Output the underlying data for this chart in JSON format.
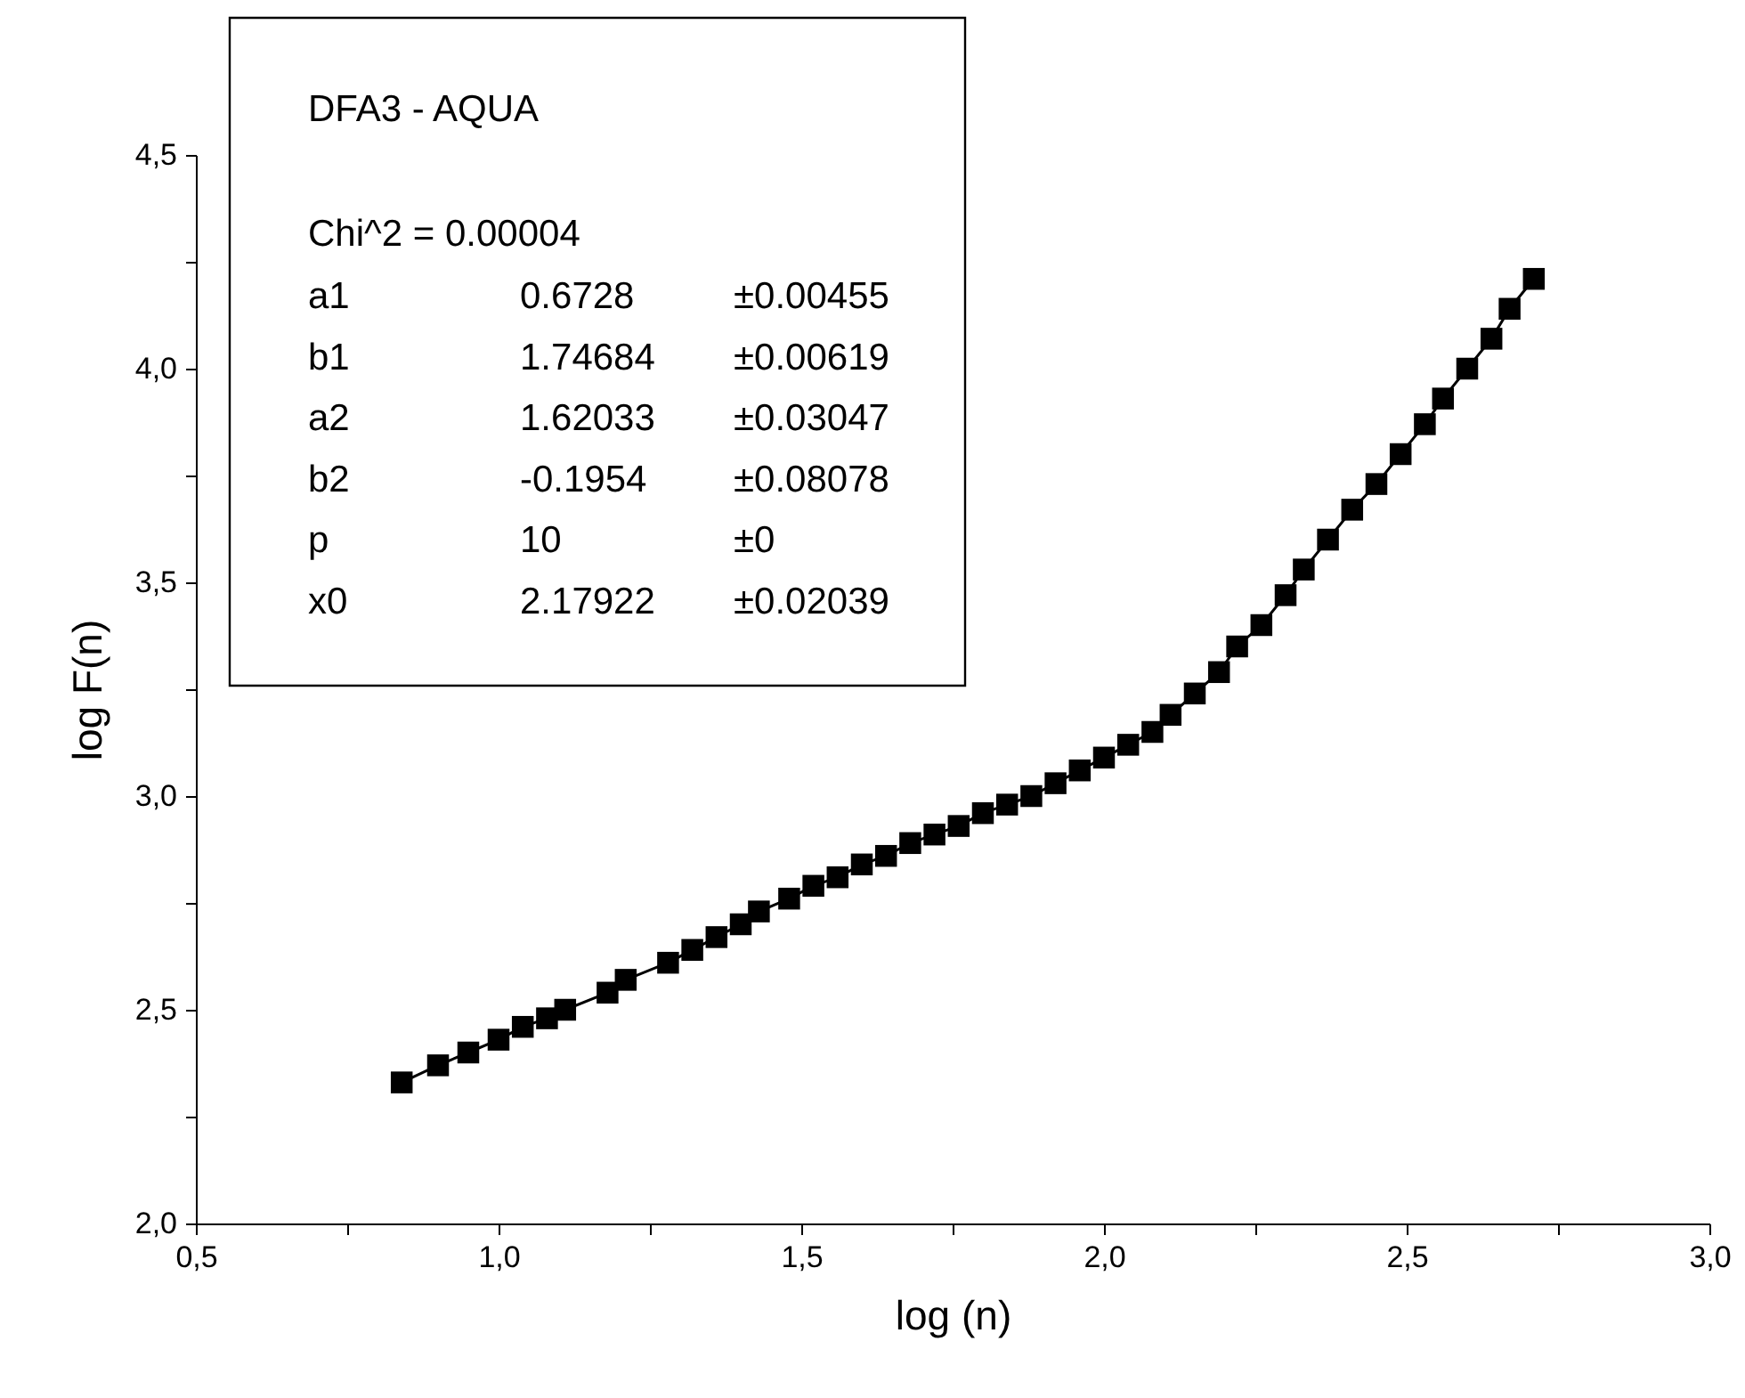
{
  "chart_data": {
    "type": "line",
    "xlabel": "log (n)",
    "ylabel": "log F(n)",
    "marker": "square",
    "line_style": "solid",
    "grid": false,
    "xlim": [
      0.5,
      3.0
    ],
    "ylim": [
      2.0,
      4.5
    ],
    "xticks": [
      {
        "value": 0.5,
        "label": "0,5"
      },
      {
        "value": 0.75,
        "label": null
      },
      {
        "value": 1.0,
        "label": "1,0"
      },
      {
        "value": 1.25,
        "label": null
      },
      {
        "value": 1.5,
        "label": "1,5"
      },
      {
        "value": 1.75,
        "label": null
      },
      {
        "value": 2.0,
        "label": "2,0"
      },
      {
        "value": 2.25,
        "label": null
      },
      {
        "value": 2.5,
        "label": "2,5"
      },
      {
        "value": 2.75,
        "label": null
      },
      {
        "value": 3.0,
        "label": "3,0"
      }
    ],
    "yticks": [
      {
        "value": 2.0,
        "label": "2,0"
      },
      {
        "value": 2.25,
        "label": null
      },
      {
        "value": 2.5,
        "label": "2,5"
      },
      {
        "value": 2.75,
        "label": null
      },
      {
        "value": 3.0,
        "label": "3,0"
      },
      {
        "value": 3.25,
        "label": null
      },
      {
        "value": 3.5,
        "label": "3,5"
      },
      {
        "value": 3.75,
        "label": null
      },
      {
        "value": 4.0,
        "label": "4,0"
      },
      {
        "value": 4.25,
        "label": null
      },
      {
        "value": 4.5,
        "label": "4,5"
      }
    ],
    "annotations": [
      "DFA3 - AQUA",
      "Chi^2 = 0.00004",
      "a1",
      "0.6728",
      "±0.00455",
      "b1",
      "1.74684",
      "±0.00619",
      "a2",
      "1.62033",
      "±0.03047",
      "b2",
      "-0.1954",
      "±0.08078",
      "p",
      "10",
      "±0",
      "x0",
      "2.17922",
      "±0.02039"
    ],
    "series": [
      {
        "color": "#000000",
        "x": [
          0.84,
          0.9,
          0.95,
          1.0,
          1.04,
          1.08,
          1.11,
          1.18,
          1.21,
          1.28,
          1.32,
          1.36,
          1.4,
          1.43,
          1.48,
          1.52,
          1.56,
          1.6,
          1.64,
          1.68,
          1.72,
          1.76,
          1.8,
          1.84,
          1.88,
          1.92,
          1.96,
          2.0,
          2.04,
          2.08,
          2.11,
          2.15,
          2.19,
          2.22,
          2.26,
          2.3,
          2.33,
          2.37,
          2.41,
          2.45,
          2.49,
          2.53,
          2.56,
          2.6,
          2.64,
          2.67,
          2.71
        ],
        "values": [
          2.33,
          2.37,
          2.4,
          2.43,
          2.46,
          2.48,
          2.5,
          2.54,
          2.57,
          2.61,
          2.64,
          2.67,
          2.7,
          2.73,
          2.76,
          2.79,
          2.81,
          2.84,
          2.86,
          2.89,
          2.91,
          2.93,
          2.96,
          2.98,
          3.0,
          3.03,
          3.06,
          3.09,
          3.12,
          3.15,
          3.19,
          3.24,
          3.29,
          3.35,
          3.4,
          3.47,
          3.53,
          3.6,
          3.67,
          3.73,
          3.8,
          3.87,
          3.93,
          4.0,
          4.07,
          4.14,
          4.21
        ]
      }
    ]
  }
}
